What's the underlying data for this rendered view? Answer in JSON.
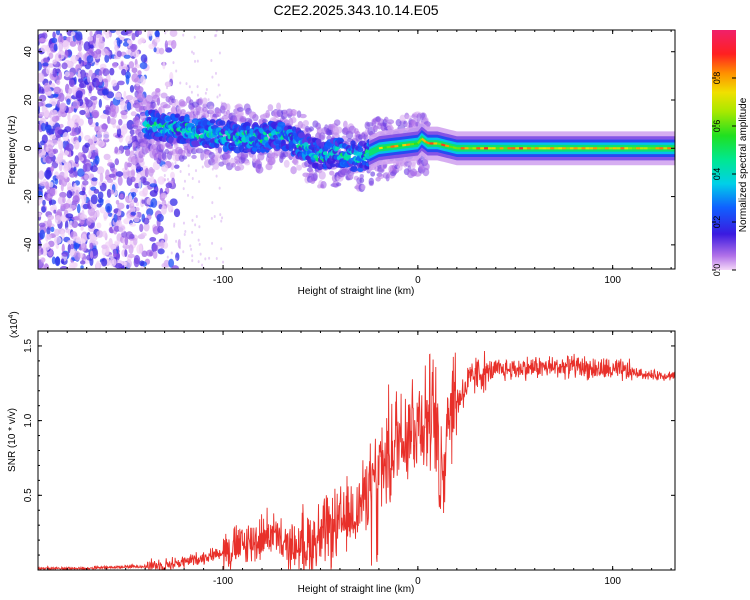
{
  "title": "C2E2.2025.343.10.14.E05",
  "chart_data": [
    {
      "type": "heatmap",
      "xlabel": "Height of straight line (km)",
      "ylabel": "Frequency (Hz)",
      "xlim": [
        -195,
        132
      ],
      "ylim": [
        -50,
        49
      ],
      "x_ticks": [
        -100,
        0,
        100
      ],
      "x_tick_labels": [
        "-100",
        "0",
        "100"
      ],
      "y_ticks": [
        -40,
        -20,
        0,
        20,
        40
      ],
      "y_tick_labels": [
        "-40",
        "-20",
        "0",
        "20",
        "40"
      ],
      "colorbar": {
        "label": "Normalized spectral amplitude",
        "ticks": [
          0.0,
          0.2,
          0.4,
          0.6,
          0.8
        ],
        "tick_labels": [
          "0.0",
          "0.2",
          "0.4",
          "0.6",
          "0.8"
        ],
        "range": [
          0,
          1
        ]
      },
      "ridge": {
        "x": [
          -140,
          -120,
          -100,
          -80,
          -70,
          -60,
          -50,
          -40,
          -30,
          -20,
          -10,
          0,
          2,
          5,
          10,
          20,
          40,
          60,
          80,
          100,
          132
        ],
        "y": [
          10,
          8,
          5,
          4,
          6,
          1,
          -3,
          -2,
          -4,
          0,
          1,
          2,
          4,
          2,
          2,
          0,
          0,
          0,
          0,
          0,
          0
        ]
      },
      "noise_region_x": [
        -195,
        -130
      ]
    },
    {
      "type": "line",
      "xlabel": "Height of straight line (km)",
      "ylabel": "SNR (10 * v/v)",
      "scale_label": "(x10",
      "scale_exponent": "4",
      "xlim": [
        -195,
        132
      ],
      "ylim": [
        0,
        1.6
      ],
      "x_ticks": [
        -100,
        0,
        100
      ],
      "x_tick_labels": [
        "-100",
        "0",
        "100"
      ],
      "y_ticks": [
        0.5,
        1.0,
        1.5
      ],
      "y_tick_labels": [
        "0.5",
        "1.0",
        "1.5"
      ],
      "series": [
        {
          "name": "SNR",
          "color": "#e8302a",
          "x": [
            -195,
            -170,
            -150,
            -130,
            -120,
            -110,
            -100,
            -90,
            -80,
            -75,
            -70,
            -60,
            -50,
            -40,
            -30,
            -25,
            -20,
            -18,
            -15,
            -10,
            -5,
            0,
            5,
            8,
            10,
            12,
            15,
            20,
            25,
            30,
            40,
            50,
            60,
            70,
            80,
            90,
            100,
            110,
            120,
            132
          ],
          "y": [
            0.01,
            0.01,
            0.02,
            0.03,
            0.05,
            0.08,
            0.12,
            0.15,
            0.2,
            0.25,
            0.15,
            0.14,
            0.2,
            0.28,
            0.4,
            0.55,
            0.68,
            0.7,
            0.72,
            0.88,
            0.92,
            0.97,
            1.0,
            0.98,
            0.88,
            0.7,
            1.02,
            1.12,
            1.22,
            1.3,
            1.33,
            1.34,
            1.35,
            1.35,
            1.36,
            1.34,
            1.33,
            1.32,
            1.3,
            1.3
          ]
        }
      ]
    }
  ]
}
